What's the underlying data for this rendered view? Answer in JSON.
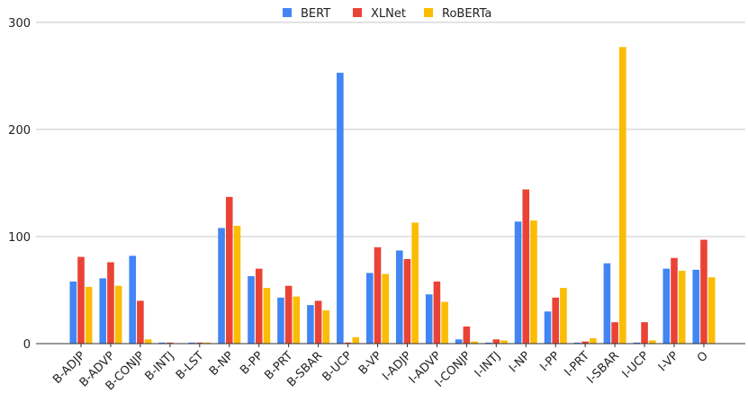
{
  "chart_data": {
    "type": "bar",
    "title": "",
    "xlabel": "",
    "ylabel": "",
    "ylim": [
      0,
      310
    ],
    "yticks": [
      0,
      100,
      200,
      300
    ],
    "grid": true,
    "legend_position": "top-center",
    "categories": [
      "B-ADJP",
      "B-ADVP",
      "B-CONJP",
      "B-INTJ",
      "B-LST",
      "B-NP",
      "B-PP",
      "B-PRT",
      "B-SBAR",
      "B-UCP",
      "B-VP",
      "I-ADJP",
      "I-ADVP",
      "I-CONJP",
      "I-INTJ",
      "I-NP",
      "I-PP",
      "I-PRT",
      "I-SBAR",
      "I-UCP",
      "I-VP",
      "O"
    ],
    "series": [
      {
        "name": "BERT",
        "color": "#4285f4",
        "values": [
          58,
          61,
          82,
          1,
          1,
          108,
          63,
          43,
          36,
          253,
          66,
          87,
          46,
          4,
          1,
          114,
          30,
          1,
          75,
          1,
          70,
          69
        ]
      },
      {
        "name": "XLNet",
        "color": "#ea4335",
        "values": [
          81,
          76,
          40,
          1,
          1,
          137,
          70,
          54,
          40,
          1,
          90,
          79,
          58,
          16,
          4,
          144,
          43,
          2,
          20,
          20,
          80,
          97
        ]
      },
      {
        "name": "RoBERTa",
        "color": "#fbbc04",
        "values": [
          53,
          54,
          4,
          0,
          1,
          110,
          52,
          44,
          31,
          6,
          65,
          113,
          39,
          2,
          3,
          115,
          52,
          5,
          277,
          3,
          68,
          62
        ]
      }
    ]
  }
}
